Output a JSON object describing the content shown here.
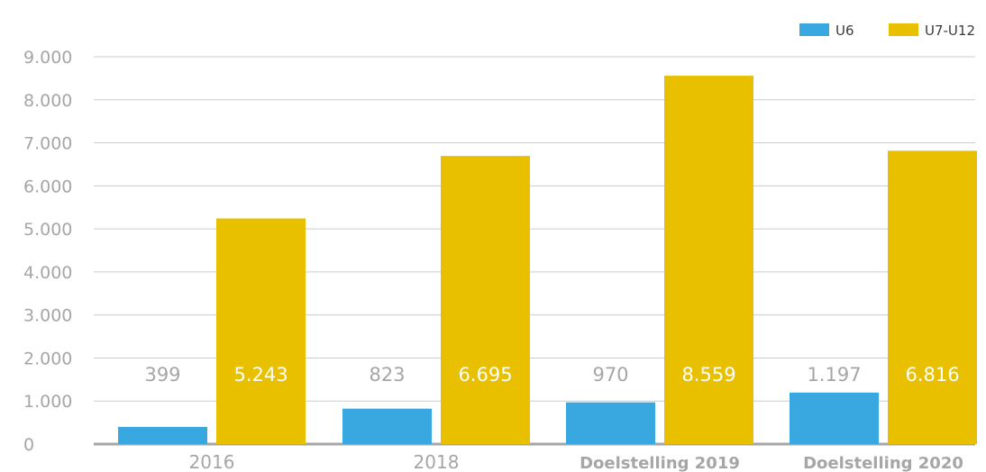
{
  "chart_data": {
    "type": "bar",
    "categories": [
      "2016",
      "2018",
      "Doelstelling 2019",
      "Doelstelling 2020"
    ],
    "series": [
      {
        "name": "U6",
        "values": [
          399,
          823,
          970,
          1197
        ],
        "labels": [
          "399",
          "823",
          "970",
          "1.197"
        ],
        "color": "#3aa8e0"
      },
      {
        "name": "U7-U12",
        "values": [
          5243,
          6695,
          8559,
          6816
        ],
        "labels": [
          "5.243",
          "6.695",
          "8.559",
          "6.816"
        ],
        "color": "#e8c000"
      }
    ],
    "yticks": [
      "0",
      "1.000",
      "2.000",
      "3.000",
      "4.000",
      "5.000",
      "6.000",
      "7.000",
      "8.000",
      "9.000"
    ],
    "ylim": [
      0,
      9000
    ],
    "grid": true,
    "legend": "top-right",
    "colors": {
      "u6": "#3aa8e0",
      "u7u12": "#e8c000",
      "grid": "#cccccc",
      "axis": "#a6a6a6"
    }
  }
}
